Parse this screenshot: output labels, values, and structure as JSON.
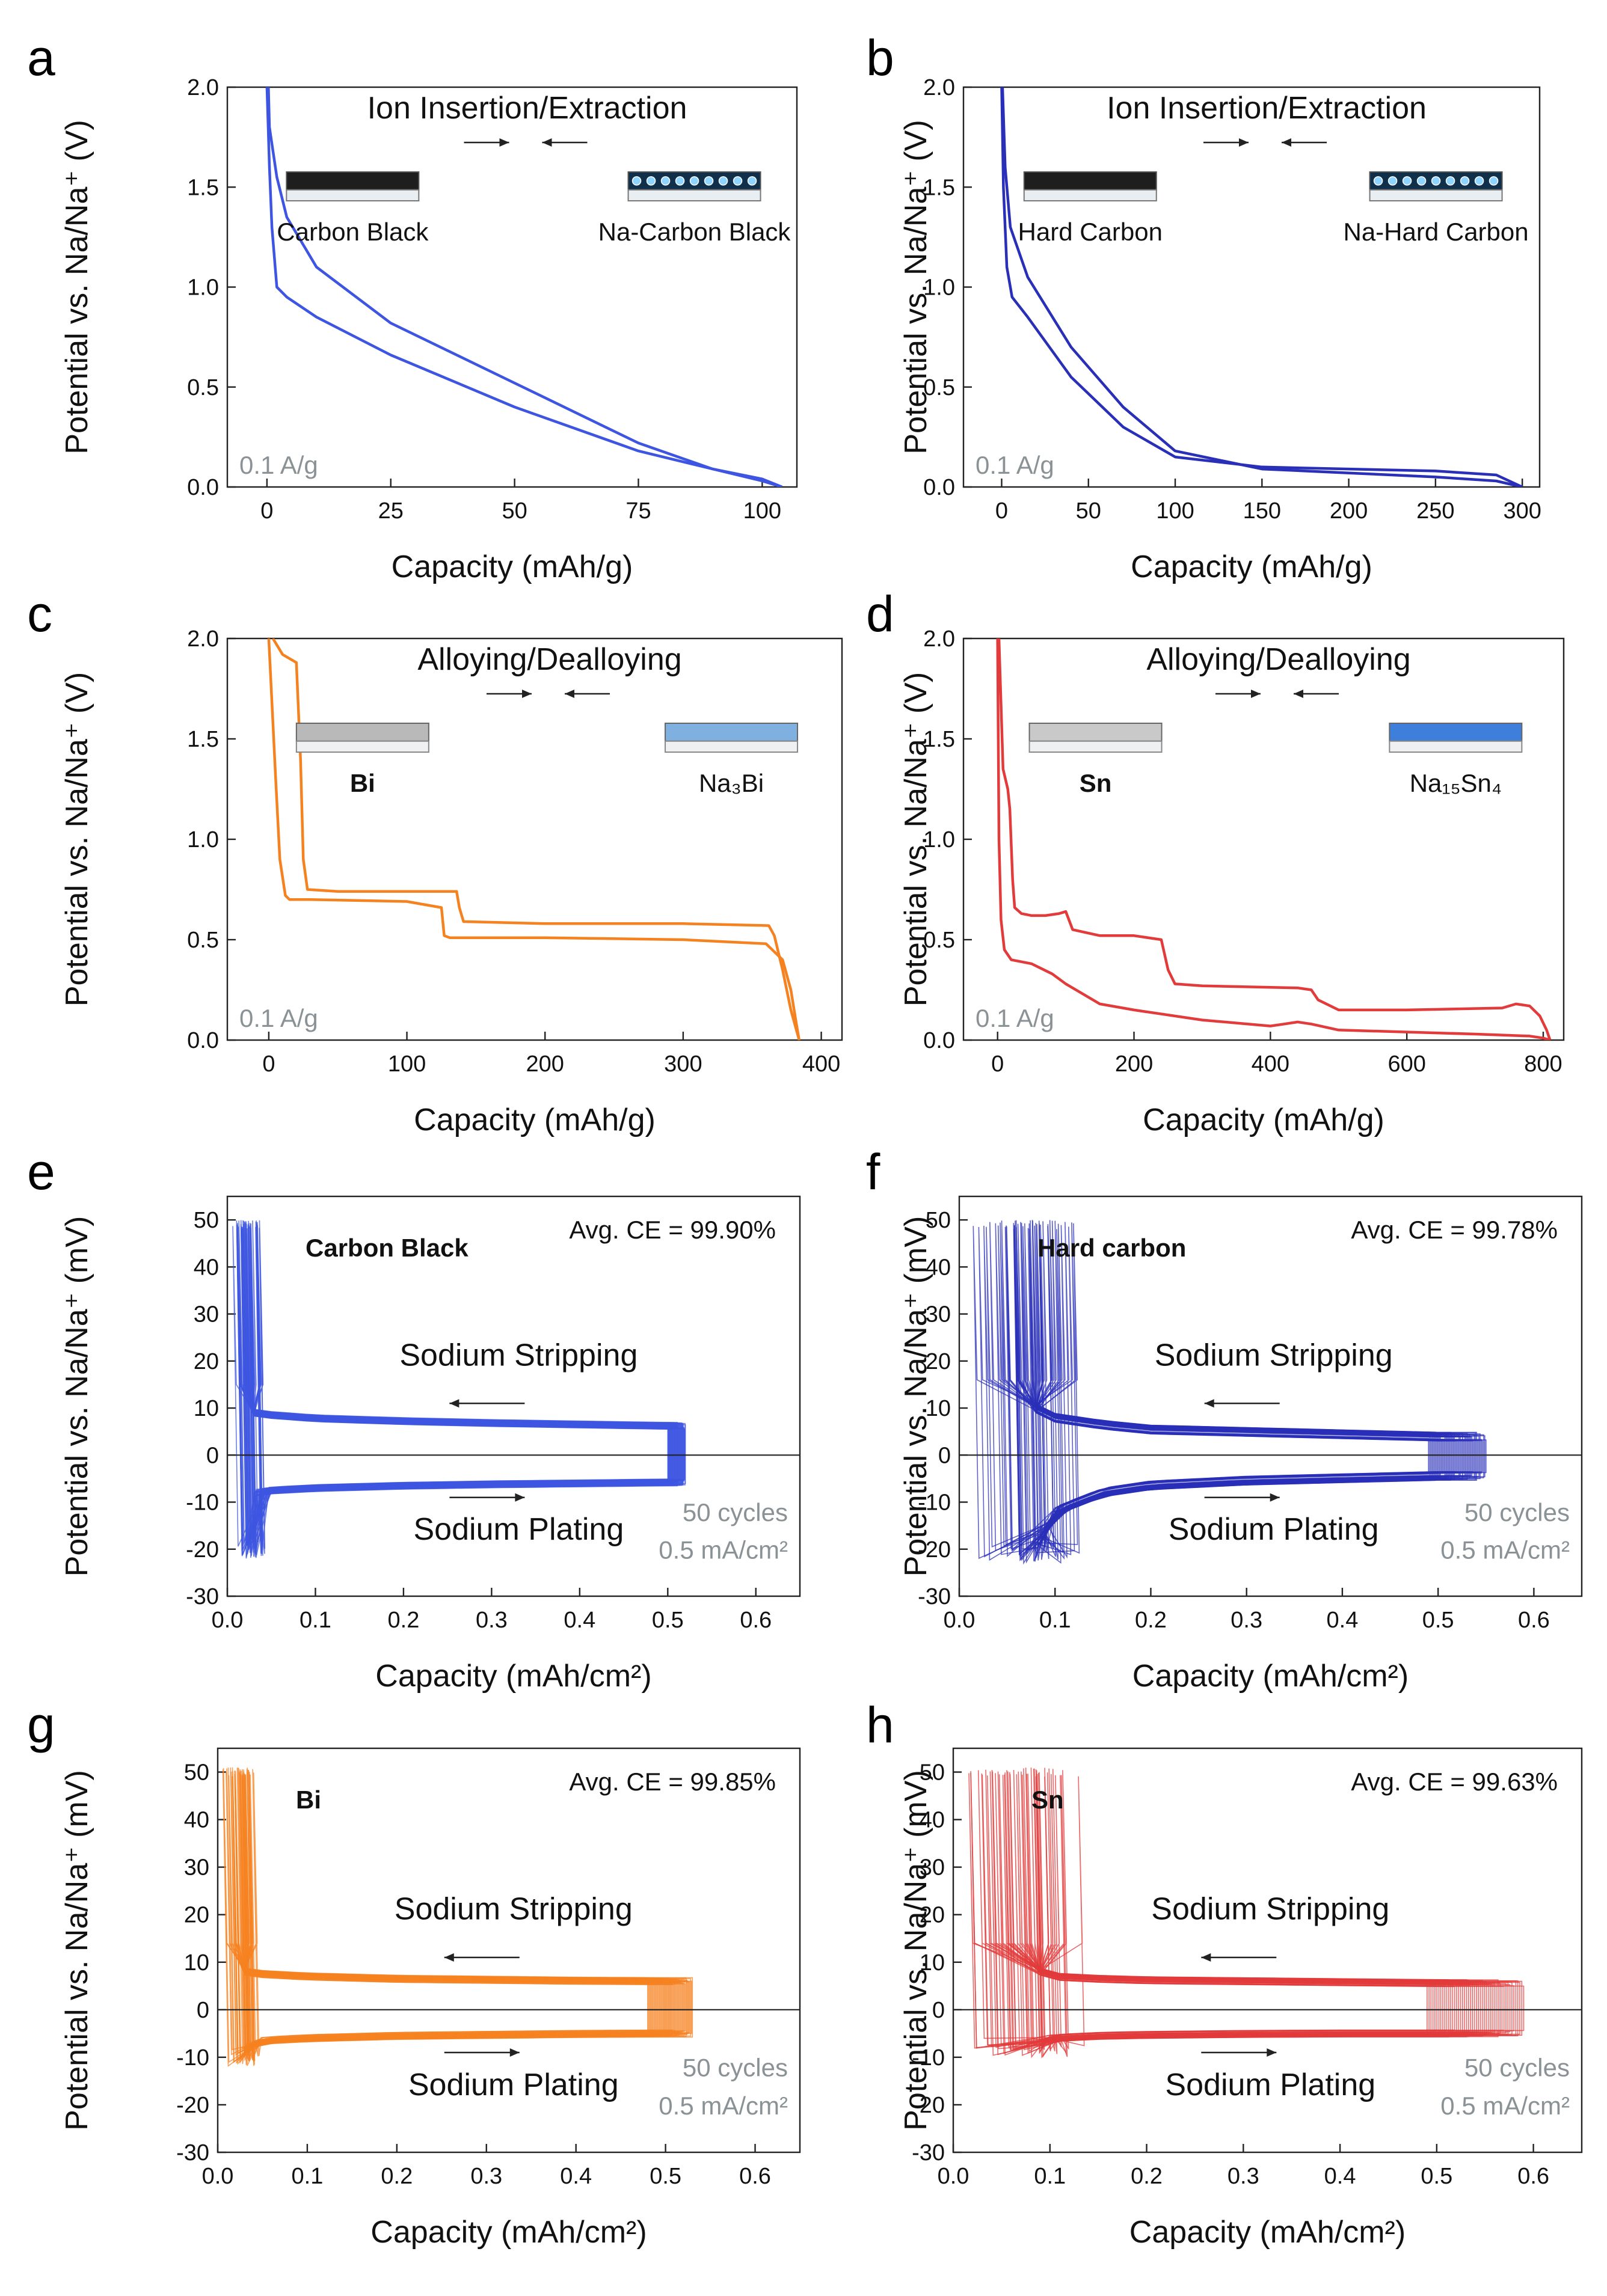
{
  "figure": {
    "ylabel_voltage": "Potential vs. Na/Na⁺ (V)",
    "ylabel_mv": "Potential vs. Na/Na⁺ (mV)",
    "xlabel_mAh_g": "Capacity (mAh/g)",
    "xlabel_mAh_cm2": "Capacity (mAh/cm²)"
  },
  "chart_data": [
    {
      "id": "a",
      "panel_label": "a",
      "type": "line",
      "title": "Ion Insertion/Extraction",
      "xlabel": "Capacity (mAh/g)",
      "ylabel": "Potential vs. Na/Na⁺ (V)",
      "xlim": [
        -8,
        107
      ],
      "ylim": [
        0,
        2.0
      ],
      "xticks": [
        0,
        25,
        50,
        75,
        100
      ],
      "yticks": [
        0.0,
        0.5,
        1.0,
        1.5,
        2.0
      ],
      "ytick_labels": [
        "0.0",
        "0.5",
        "1.0",
        "1.5",
        "2.0"
      ],
      "color": "#3d55e0",
      "rate_label": "0.1 A/g",
      "materials": {
        "before": "Carbon Black",
        "after": "Na-Carbon Black",
        "style": "porous-blocks"
      },
      "series": [
        {
          "name": "discharge",
          "x": [
            0,
            0.5,
            1,
            2,
            4,
            10,
            25,
            50,
            75,
            90,
            100,
            104
          ],
          "y": [
            2.0,
            1.6,
            1.3,
            1.0,
            0.95,
            0.85,
            0.66,
            0.4,
            0.18,
            0.09,
            0.04,
            0.0
          ]
        },
        {
          "name": "charge",
          "x": [
            104,
            100,
            90,
            75,
            50,
            25,
            10,
            4,
            2,
            0.5,
            0.3
          ],
          "y": [
            0.0,
            0.03,
            0.09,
            0.22,
            0.52,
            0.82,
            1.1,
            1.35,
            1.55,
            1.8,
            2.0
          ]
        }
      ]
    },
    {
      "id": "b",
      "panel_label": "b",
      "type": "line",
      "title": "Ion Insertion/Extraction",
      "xlabel": "Capacity (mAh/g)",
      "ylabel": "Potential vs. Na/Na⁺ (V)",
      "xlim": [
        -22,
        310
      ],
      "ylim": [
        0,
        2.0
      ],
      "xticks": [
        0,
        50,
        100,
        150,
        200,
        250,
        300
      ],
      "yticks": [
        0.0,
        0.5,
        1.0,
        1.5,
        2.0
      ],
      "ytick_labels": [
        "0.0",
        "0.5",
        "1.0",
        "1.5",
        "2.0"
      ],
      "color": "#2a2fb8",
      "rate_label": "0.1 A/g",
      "materials": {
        "before": "Hard Carbon",
        "after": "Na-Hard Carbon",
        "style": "porous-blocks"
      },
      "series": [
        {
          "name": "discharge",
          "x": [
            0,
            1,
            3,
            6,
            15,
            40,
            70,
            100,
            150,
            200,
            250,
            285,
            300
          ],
          "y": [
            2.0,
            1.5,
            1.1,
            0.95,
            0.85,
            0.55,
            0.3,
            0.15,
            0.1,
            0.09,
            0.08,
            0.06,
            0.0
          ]
        },
        {
          "name": "charge",
          "x": [
            300,
            285,
            250,
            200,
            150,
            100,
            70,
            40,
            15,
            5,
            2,
            0.5
          ],
          "y": [
            0.0,
            0.03,
            0.05,
            0.07,
            0.09,
            0.18,
            0.4,
            0.7,
            1.05,
            1.3,
            1.6,
            2.0
          ]
        }
      ]
    },
    {
      "id": "c",
      "panel_label": "c",
      "type": "line",
      "title": "Alloying/Dealloying",
      "xlabel": "Capacity (mAh/g)",
      "ylabel": "Potential vs. Na/Na⁺ (V)",
      "xlim": [
        -30,
        415
      ],
      "ylim": [
        0,
        2.0
      ],
      "xticks": [
        0,
        100,
        200,
        300,
        400
      ],
      "yticks": [
        0.0,
        0.5,
        1.0,
        1.5,
        2.0
      ],
      "ytick_labels": [
        "0.0",
        "0.5",
        "1.0",
        "1.5",
        "2.0"
      ],
      "color": "#f58220",
      "rate_label": "0.1 A/g",
      "materials": {
        "before": "Bi",
        "after": "Na₃Bi",
        "style": "solid-blocks",
        "before_bold": true,
        "block_top": "#b9b9b9",
        "block_top_after": "#7fb0e0"
      },
      "series": [
        {
          "name": "discharge",
          "x": [
            0,
            5,
            8,
            12,
            15,
            30,
            100,
            125,
            127,
            131,
            200,
            300,
            360,
            372,
            378,
            382,
            384
          ],
          "y": [
            2.0,
            1.3,
            0.9,
            0.72,
            0.7,
            0.7,
            0.69,
            0.66,
            0.52,
            0.51,
            0.51,
            0.5,
            0.48,
            0.4,
            0.25,
            0.08,
            0.0
          ]
        },
        {
          "name": "charge",
          "x": [
            384,
            378,
            372,
            366,
            362,
            300,
            200,
            141,
            138,
            136,
            120,
            50,
            28,
            25,
            23,
            20,
            10,
            3
          ],
          "y": [
            0.0,
            0.15,
            0.35,
            0.52,
            0.57,
            0.58,
            0.58,
            0.59,
            0.66,
            0.74,
            0.74,
            0.74,
            0.75,
            0.9,
            1.4,
            1.88,
            1.92,
            2.0
          ]
        }
      ]
    },
    {
      "id": "d",
      "panel_label": "d",
      "type": "line",
      "title": "Alloying/Dealloying",
      "xlabel": "Capacity (mAh/g)",
      "ylabel": "Potential vs. Na/Na⁺ (V)",
      "xlim": [
        -50,
        830
      ],
      "ylim": [
        0,
        2.0
      ],
      "xticks": [
        0,
        200,
        400,
        600,
        800
      ],
      "yticks": [
        0.0,
        0.5,
        1.0,
        1.5,
        2.0
      ],
      "ytick_labels": [
        "0.0",
        "0.5",
        "1.0",
        "1.5",
        "2.0"
      ],
      "color": "#e23b3b",
      "rate_label": "0.1 A/g",
      "materials": {
        "before": "Sn",
        "after": "Na₁₅Sn₄",
        "style": "solid-blocks",
        "before_bold": true,
        "block_top": "#c9c9c9",
        "block_top_after": "#3f7fdc"
      },
      "series": [
        {
          "name": "discharge",
          "x": [
            0,
            2,
            5,
            10,
            20,
            50,
            80,
            100,
            150,
            200,
            300,
            400,
            420,
            440,
            460,
            500,
            600,
            700,
            780,
            800,
            810
          ],
          "y": [
            2.0,
            1.0,
            0.6,
            0.45,
            0.4,
            0.38,
            0.33,
            0.28,
            0.18,
            0.15,
            0.1,
            0.07,
            0.08,
            0.09,
            0.08,
            0.05,
            0.04,
            0.03,
            0.02,
            0.01,
            0.0
          ]
        },
        {
          "name": "charge",
          "x": [
            810,
            805,
            795,
            780,
            760,
            740,
            600,
            500,
            470,
            460,
            440,
            300,
            260,
            250,
            240,
            200,
            150,
            110,
            100,
            90,
            70,
            50,
            35,
            25,
            22,
            18,
            15,
            8,
            2
          ],
          "y": [
            0.0,
            0.05,
            0.12,
            0.17,
            0.18,
            0.16,
            0.15,
            0.15,
            0.2,
            0.25,
            0.26,
            0.27,
            0.28,
            0.35,
            0.5,
            0.52,
            0.52,
            0.55,
            0.64,
            0.63,
            0.62,
            0.62,
            0.63,
            0.66,
            0.8,
            1.15,
            1.25,
            1.35,
            2.0
          ]
        }
      ]
    },
    {
      "id": "e",
      "panel_label": "e",
      "type": "line",
      "material_title": "Carbon Black",
      "ce_label": "Avg. CE = 99.90%",
      "xlabel": "Capacity (mAh/cm²)",
      "ylabel": "Potential vs. Na/Na⁺ (mV)",
      "xlim": [
        0,
        0.65
      ],
      "ylim": [
        -30,
        55
      ],
      "xticks": [
        0.0,
        0.1,
        0.2,
        0.3,
        0.4,
        0.5,
        0.6
      ],
      "xtick_labels": [
        "0.0",
        "0.1",
        "0.2",
        "0.3",
        "0.4",
        "0.5",
        "0.6"
      ],
      "yticks": [
        -30,
        -20,
        -10,
        0,
        10,
        20,
        30,
        40,
        50
      ],
      "color": "#3d55e0",
      "stripping_label": "Sodium Stripping",
      "plating_label": "Sodium Plating",
      "cycles_label": "50 cycles",
      "current_label": "0.5 mA/cm²",
      "cycles": 50,
      "envelope": {
        "strip_x": [
          0.03,
          0.05,
          0.1,
          0.2,
          0.3,
          0.4,
          0.5
        ],
        "strip_y": [
          9,
          8.5,
          7.8,
          7.2,
          6.8,
          6.5,
          6.2
        ],
        "plate_x": [
          0.03,
          0.05,
          0.1,
          0.2,
          0.3,
          0.4,
          0.5
        ],
        "plate_y": [
          -8,
          -7.5,
          -7,
          -6.5,
          -6.2,
          -6,
          -5.8
        ],
        "spike_top": 50,
        "spike_bottom": -22,
        "left_band": [
          0.005,
          0.035
        ],
        "right_band": [
          0.5,
          0.52
        ],
        "band_spread": 1.5,
        "left_spread": 0.2
      }
    },
    {
      "id": "f",
      "panel_label": "f",
      "type": "line",
      "material_title": "Hard carbon",
      "ce_label": "Avg. CE = 99.78%",
      "xlabel": "Capacity (mAh/cm²)",
      "ylabel": "Potential vs. Na/Na⁺ (mV)",
      "xlim": [
        0,
        0.65
      ],
      "ylim": [
        -30,
        55
      ],
      "xticks": [
        0.0,
        0.1,
        0.2,
        0.3,
        0.4,
        0.5,
        0.6
      ],
      "xtick_labels": [
        "0.0",
        "0.1",
        "0.2",
        "0.3",
        "0.4",
        "0.5",
        "0.6"
      ],
      "yticks": [
        -30,
        -20,
        -10,
        0,
        10,
        20,
        30,
        40,
        50
      ],
      "color": "#2a2fb8",
      "stripping_label": "Sodium Stripping",
      "plating_label": "Sodium Plating",
      "cycles_label": "50 cycles",
      "current_label": "0.5 mA/cm²",
      "cycles": 50,
      "envelope": {
        "strip_x": [
          0.08,
          0.1,
          0.15,
          0.2,
          0.3,
          0.4,
          0.5
        ],
        "strip_y": [
          10,
          8,
          6.5,
          5.5,
          5,
          4.5,
          4
        ],
        "plate_x": [
          0.08,
          0.1,
          0.15,
          0.2,
          0.3,
          0.4,
          0.5
        ],
        "plate_y": [
          -20,
          -12,
          -8,
          -6.5,
          -5.5,
          -5,
          -4.5
        ],
        "spike_top": 50,
        "spike_bottom": -23,
        "left_band": [
          0.01,
          0.1
        ],
        "right_band": [
          0.49,
          0.55
        ],
        "band_spread": 2,
        "left_spread": 0.3
      }
    },
    {
      "id": "g",
      "panel_label": "g",
      "type": "line",
      "material_title": "Bi",
      "ce_label": "Avg. CE = 99.85%",
      "xlabel": "Capacity (mAh/cm²)",
      "ylabel": "Potential vs. Na/Na⁺ (mV)",
      "xlim": [
        0,
        0.65
      ],
      "ylim": [
        -30,
        55
      ],
      "xticks": [
        0.0,
        0.1,
        0.2,
        0.3,
        0.4,
        0.5,
        0.6
      ],
      "xtick_labels": [
        "0.0",
        "0.1",
        "0.2",
        "0.3",
        "0.4",
        "0.5",
        "0.6"
      ],
      "yticks": [
        -30,
        -20,
        -10,
        0,
        10,
        20,
        30,
        40,
        50
      ],
      "color": "#f58220",
      "stripping_label": "Sodium Stripping",
      "plating_label": "Sodium Plating",
      "cycles_label": "50 cycles",
      "current_label": "0.5 mA/cm²",
      "cycles": 50,
      "envelope": {
        "strip_x": [
          0.03,
          0.05,
          0.1,
          0.2,
          0.3,
          0.4,
          0.5
        ],
        "strip_y": [
          8,
          7.5,
          7,
          6.5,
          6.3,
          6.1,
          6
        ],
        "plate_x": [
          0.03,
          0.05,
          0.1,
          0.2,
          0.3,
          0.4,
          0.5
        ],
        "plate_y": [
          -8,
          -6.5,
          -6,
          -5.5,
          -5.3,
          -5.1,
          -5
        ],
        "spike_top": 51,
        "spike_bottom": -12,
        "left_band": [
          0.005,
          0.035
        ],
        "right_band": [
          0.48,
          0.53
        ],
        "band_spread": 1.5,
        "left_spread": 0.25
      }
    },
    {
      "id": "h",
      "panel_label": "h",
      "type": "line",
      "material_title": "Sn",
      "ce_label": "Avg. CE = 99.63%",
      "xlabel": "Capacity (mAh/cm²)",
      "ylabel": "Potential vs. Na/Na⁺ (mV)",
      "xlim": [
        0,
        0.65
      ],
      "ylim": [
        -30,
        55
      ],
      "xticks": [
        0.0,
        0.1,
        0.2,
        0.3,
        0.4,
        0.5,
        0.6
      ],
      "xtick_labels": [
        "0.0",
        "0.1",
        "0.2",
        "0.3",
        "0.4",
        "0.5",
        "0.6"
      ],
      "yticks": [
        -30,
        -20,
        -10,
        0,
        10,
        20,
        30,
        40,
        50
      ],
      "color": "#e23b3b",
      "stripping_label": "Sodium Stripping",
      "plating_label": "Sodium Plating",
      "cycles_label": "50 cycles",
      "current_label": "0.5 mA/cm²",
      "cycles": 50,
      "envelope": {
        "strip_x": [
          0.09,
          0.1,
          0.15,
          0.2,
          0.3,
          0.4,
          0.5
        ],
        "strip_y": [
          8,
          7,
          6.5,
          6.2,
          6,
          5.8,
          5.6
        ],
        "plate_x": [
          0.09,
          0.1,
          0.15,
          0.2,
          0.3,
          0.4,
          0.5
        ],
        "plate_y": [
          -7,
          -6,
          -5.5,
          -5.3,
          -5.1,
          -5,
          -5
        ],
        "spike_top": 51,
        "spike_bottom": -10,
        "left_band": [
          0.005,
          0.09
        ],
        "right_band": [
          0.49,
          0.59
        ],
        "band_spread": 1.5,
        "left_spread": 0.5
      }
    }
  ]
}
